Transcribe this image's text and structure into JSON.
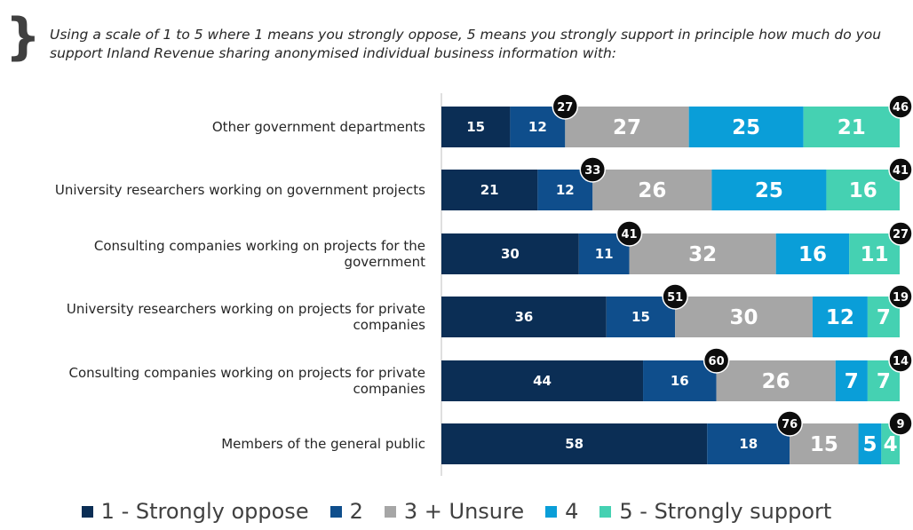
{
  "question": {
    "brace": "}",
    "text": "Using a scale of 1 to 5 where 1 means you strongly oppose, 5 means you strongly support in principle how much do you support Inland Revenue sharing anonymised individual business information with:"
  },
  "colors": {
    "c1": "#0b2e55",
    "c2": "#0f4e8c",
    "c3": "#a6a6a6",
    "c4": "#0a9ed8",
    "c5": "#45d1b2",
    "badge": "#0d0d0d"
  },
  "chart_data": {
    "type": "bar",
    "orientation": "horizontal",
    "stacked": true,
    "categories": [
      [
        "Other government departments"
      ],
      [
        "University researchers working on government projects"
      ],
      [
        "Consulting companies working on projects for the",
        "government"
      ],
      [
        "University researchers working on projects for private",
        "companies"
      ],
      [
        "Consulting companies working on projects for private",
        "companies"
      ],
      [
        "Members of the general public"
      ]
    ],
    "series": [
      {
        "name": "1 - Strongly oppose",
        "values": [
          15,
          21,
          30,
          36,
          44,
          58
        ]
      },
      {
        "name": "2",
        "values": [
          12,
          12,
          11,
          15,
          16,
          18
        ]
      },
      {
        "name": "3 + Unsure",
        "values": [
          27,
          26,
          32,
          30,
          26,
          15
        ]
      },
      {
        "name": "4",
        "values": [
          25,
          25,
          16,
          12,
          7,
          5
        ]
      },
      {
        "name": "5 - Strongly support",
        "values": [
          21,
          16,
          11,
          7,
          7,
          4
        ]
      }
    ],
    "oppose_totals": [
      27,
      33,
      41,
      51,
      60,
      76
    ],
    "support_totals": [
      46,
      41,
      27,
      19,
      14,
      9
    ],
    "xlim": [
      0,
      100
    ],
    "legend_position": "bottom",
    "grid": false
  }
}
